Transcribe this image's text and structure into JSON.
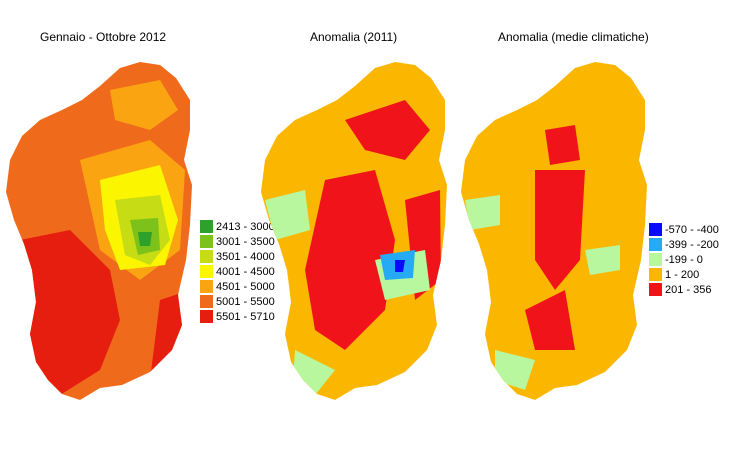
{
  "panels": [
    {
      "title": "Gennaio - Ottobre 2012",
      "base_color": "#f0701a",
      "legend": [
        {
          "label": "2413 - 3000",
          "color": "#2ea02c"
        },
        {
          "label": "3001 - 3500",
          "color": "#7cc21a"
        },
        {
          "label": "3501 - 4000",
          "color": "#c6dc14"
        },
        {
          "label": "4001 - 4500",
          "color": "#fbf500"
        },
        {
          "label": "4501 - 5000",
          "color": "#fba412"
        },
        {
          "label": "5001 - 5500",
          "color": "#f06a1b"
        },
        {
          "label": "5501 - 5710",
          "color": "#e61e10"
        }
      ]
    },
    {
      "title": "Anomalia (2011)",
      "base_color": "#fbb700"
    },
    {
      "title": "Anomalia (medie climatiche)",
      "base_color": "#fbb700",
      "legend": [
        {
          "label": "-570 - -400",
          "color": "#0a0aff"
        },
        {
          "label": "-399 - -200",
          "color": "#27aaf5"
        },
        {
          "label": "-199 - 0",
          "color": "#b8f79e"
        },
        {
          "label": "1 - 200",
          "color": "#fbb700"
        },
        {
          "label": "201 - 356",
          "color": "#f0141a"
        }
      ]
    }
  ]
}
